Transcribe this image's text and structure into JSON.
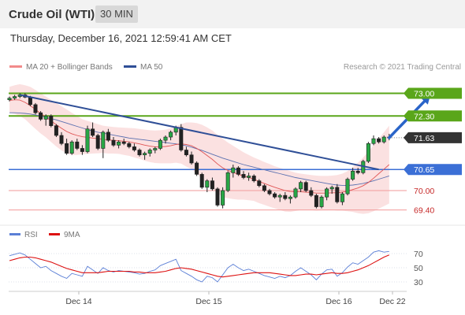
{
  "header": {
    "title": "Crude Oil (WTI)",
    "timeframe": "30 MIN"
  },
  "timestamp": "Thursday, December 16, 2021 12:59:41 AM CET",
  "legend": {
    "ma20_label": "MA 20 + Bollinger Bands",
    "ma50_label": "MA 50",
    "credit": "Research © 2021 Trading Central",
    "rsi_label": "RSI",
    "rsi_ma_label": "9MA"
  },
  "colors": {
    "green": "#5aa61a",
    "blue": "#3b6fd6",
    "red": "#e05555",
    "bands": "#f8c9c9",
    "ma20": "#e05555",
    "ma50": "#5b70b0",
    "trend": "#2f4f97",
    "current": "#333333",
    "rsi": "#5b7fd6",
    "rsi_ma": "#dd1111"
  },
  "chart_data": [
    {
      "type": "candlestick",
      "x_ticks": [
        "Dec 14",
        "Dec 15",
        "Dec 16",
        "Dec 22"
      ],
      "y_range": [
        69.1,
        73.4
      ],
      "levels": [
        {
          "value": 73.0,
          "label": "73.00",
          "kind": "resistance"
        },
        {
          "value": 72.3,
          "label": "72.30",
          "kind": "resistance"
        },
        {
          "value": 71.63,
          "label": "71.63",
          "kind": "current"
        },
        {
          "value": 70.65,
          "label": "70.65",
          "kind": "pivot"
        },
        {
          "value": 70.0,
          "label": "70.00",
          "kind": "support"
        },
        {
          "value": 69.4,
          "label": "69.40",
          "kind": "support"
        }
      ],
      "series": [
        {
          "name": "MA 20 + Bollinger Bands"
        },
        {
          "name": "MA 50"
        }
      ],
      "candles": [
        {
          "o": 72.8,
          "h": 72.9,
          "l": 72.75,
          "c": 72.85
        },
        {
          "o": 72.85,
          "h": 72.95,
          "l": 72.8,
          "c": 72.9
        },
        {
          "o": 72.9,
          "h": 73.0,
          "l": 72.85,
          "c": 72.95
        },
        {
          "o": 72.95,
          "h": 73.0,
          "l": 72.85,
          "c": 72.88
        },
        {
          "o": 72.88,
          "h": 72.92,
          "l": 72.6,
          "c": 72.65
        },
        {
          "o": 72.65,
          "h": 72.7,
          "l": 72.35,
          "c": 72.4
        },
        {
          "o": 72.4,
          "h": 72.45,
          "l": 72.15,
          "c": 72.2
        },
        {
          "o": 72.2,
          "h": 72.35,
          "l": 72.0,
          "c": 72.3
        },
        {
          "o": 72.3,
          "h": 72.35,
          "l": 71.95,
          "c": 72.0
        },
        {
          "o": 72.0,
          "h": 72.05,
          "l": 71.65,
          "c": 71.7
        },
        {
          "o": 71.7,
          "h": 71.8,
          "l": 71.4,
          "c": 71.45
        },
        {
          "o": 71.45,
          "h": 71.6,
          "l": 71.1,
          "c": 71.15
        },
        {
          "o": 71.15,
          "h": 71.55,
          "l": 71.1,
          "c": 71.5
        },
        {
          "o": 71.5,
          "h": 71.6,
          "l": 71.25,
          "c": 71.3
        },
        {
          "o": 71.3,
          "h": 71.4,
          "l": 71.1,
          "c": 71.2
        },
        {
          "o": 71.2,
          "h": 72.0,
          "l": 71.15,
          "c": 71.9
        },
        {
          "o": 71.9,
          "h": 72.1,
          "l": 71.65,
          "c": 71.7
        },
        {
          "o": 71.7,
          "h": 71.75,
          "l": 71.25,
          "c": 71.3
        },
        {
          "o": 71.3,
          "h": 71.85,
          "l": 71.0,
          "c": 71.8
        },
        {
          "o": 71.8,
          "h": 71.9,
          "l": 71.5,
          "c": 71.55
        },
        {
          "o": 71.55,
          "h": 71.65,
          "l": 71.35,
          "c": 71.4
        },
        {
          "o": 71.4,
          "h": 71.55,
          "l": 71.3,
          "c": 71.5
        },
        {
          "o": 71.5,
          "h": 71.6,
          "l": 71.4,
          "c": 71.45
        },
        {
          "o": 71.45,
          "h": 71.5,
          "l": 71.3,
          "c": 71.35
        },
        {
          "o": 71.35,
          "h": 71.45,
          "l": 71.2,
          "c": 71.25
        },
        {
          "o": 71.25,
          "h": 71.3,
          "l": 71.05,
          "c": 71.1
        },
        {
          "o": 71.1,
          "h": 71.2,
          "l": 70.95,
          "c": 71.15
        },
        {
          "o": 71.15,
          "h": 71.3,
          "l": 71.05,
          "c": 71.25
        },
        {
          "o": 71.25,
          "h": 71.35,
          "l": 71.15,
          "c": 71.3
        },
        {
          "o": 71.3,
          "h": 71.6,
          "l": 71.25,
          "c": 71.55
        },
        {
          "o": 71.55,
          "h": 71.7,
          "l": 71.45,
          "c": 71.65
        },
        {
          "o": 71.65,
          "h": 71.85,
          "l": 71.55,
          "c": 71.8
        },
        {
          "o": 71.8,
          "h": 72.0,
          "l": 71.7,
          "c": 71.95
        },
        {
          "o": 71.95,
          "h": 72.05,
          "l": 71.2,
          "c": 71.25
        },
        {
          "o": 71.25,
          "h": 71.35,
          "l": 71.05,
          "c": 71.1
        },
        {
          "o": 71.1,
          "h": 71.2,
          "l": 70.8,
          "c": 70.85
        },
        {
          "o": 70.85,
          "h": 70.9,
          "l": 70.45,
          "c": 70.5
        },
        {
          "o": 70.5,
          "h": 70.55,
          "l": 70.05,
          "c": 70.1
        },
        {
          "o": 70.1,
          "h": 70.35,
          "l": 69.95,
          "c": 70.3
        },
        {
          "o": 70.3,
          "h": 70.4,
          "l": 70.0,
          "c": 70.05
        },
        {
          "o": 70.05,
          "h": 70.1,
          "l": 69.5,
          "c": 69.55
        },
        {
          "o": 69.55,
          "h": 70.1,
          "l": 69.45,
          "c": 70.0
        },
        {
          "o": 70.0,
          "h": 70.6,
          "l": 69.95,
          "c": 70.55
        },
        {
          "o": 70.55,
          "h": 70.8,
          "l": 70.4,
          "c": 70.7
        },
        {
          "o": 70.7,
          "h": 70.75,
          "l": 70.45,
          "c": 70.5
        },
        {
          "o": 70.5,
          "h": 70.6,
          "l": 70.35,
          "c": 70.4
        },
        {
          "o": 70.4,
          "h": 70.55,
          "l": 70.3,
          "c": 70.45
        },
        {
          "o": 70.45,
          "h": 70.5,
          "l": 70.25,
          "c": 70.3
        },
        {
          "o": 70.3,
          "h": 70.35,
          "l": 70.1,
          "c": 70.15
        },
        {
          "o": 70.15,
          "h": 70.2,
          "l": 69.95,
          "c": 70.0
        },
        {
          "o": 70.0,
          "h": 70.05,
          "l": 69.85,
          "c": 69.9
        },
        {
          "o": 69.9,
          "h": 69.95,
          "l": 69.75,
          "c": 69.8
        },
        {
          "o": 69.8,
          "h": 69.9,
          "l": 69.65,
          "c": 69.85
        },
        {
          "o": 69.85,
          "h": 69.95,
          "l": 69.7,
          "c": 69.75
        },
        {
          "o": 69.75,
          "h": 69.85,
          "l": 69.6,
          "c": 69.8
        },
        {
          "o": 69.8,
          "h": 70.1,
          "l": 69.75,
          "c": 70.05
        },
        {
          "o": 70.05,
          "h": 70.3,
          "l": 69.95,
          "c": 70.25
        },
        {
          "o": 70.25,
          "h": 70.3,
          "l": 69.95,
          "c": 70.0
        },
        {
          "o": 70.0,
          "h": 70.1,
          "l": 69.8,
          "c": 69.85
        },
        {
          "o": 69.85,
          "h": 69.9,
          "l": 69.45,
          "c": 69.5
        },
        {
          "o": 69.5,
          "h": 69.85,
          "l": 69.45,
          "c": 69.8
        },
        {
          "o": 69.8,
          "h": 70.1,
          "l": 69.7,
          "c": 70.05
        },
        {
          "o": 70.05,
          "h": 70.15,
          "l": 69.9,
          "c": 70.1
        },
        {
          "o": 70.1,
          "h": 70.2,
          "l": 69.6,
          "c": 69.65
        },
        {
          "o": 69.65,
          "h": 69.95,
          "l": 69.55,
          "c": 69.9
        },
        {
          "o": 69.9,
          "h": 70.4,
          "l": 69.85,
          "c": 70.35
        },
        {
          "o": 70.35,
          "h": 70.7,
          "l": 70.3,
          "c": 70.6
        },
        {
          "o": 70.6,
          "h": 70.7,
          "l": 70.5,
          "c": 70.55
        },
        {
          "o": 70.55,
          "h": 70.95,
          "l": 70.5,
          "c": 70.9
        },
        {
          "o": 70.9,
          "h": 71.5,
          "l": 70.85,
          "c": 71.45
        },
        {
          "o": 71.45,
          "h": 71.7,
          "l": 71.4,
          "c": 71.6
        },
        {
          "o": 71.6,
          "h": 71.65,
          "l": 71.45,
          "c": 71.5
        },
        {
          "o": 71.5,
          "h": 71.7,
          "l": 71.45,
          "c": 71.65
        },
        {
          "o": 71.65,
          "h": 71.75,
          "l": 71.55,
          "c": 71.63
        }
      ],
      "ma20": [
        72.78,
        72.8,
        72.79,
        72.72,
        72.62,
        72.5,
        72.38,
        72.27,
        72.15,
        72.03,
        71.92,
        71.82,
        71.75,
        71.7,
        71.66,
        71.64,
        71.62,
        71.6,
        71.58,
        71.56,
        71.55,
        71.54,
        71.52,
        71.5,
        71.47,
        71.44,
        71.4,
        71.37,
        71.35,
        71.35,
        71.36,
        71.38,
        71.42,
        71.44,
        71.42,
        71.38,
        71.3,
        71.2,
        71.08,
        70.96,
        70.82,
        70.7,
        70.62,
        70.56,
        70.5,
        70.45,
        70.4,
        70.35,
        70.28,
        70.22,
        70.16,
        70.1,
        70.05,
        70.0,
        69.97,
        69.96,
        69.96,
        69.95,
        69.94,
        69.92,
        69.92,
        69.92,
        69.93,
        69.93,
        69.95,
        69.98,
        70.03,
        70.08,
        70.15,
        70.25,
        70.38,
        70.52,
        70.66,
        70.8
      ],
      "ma50": [
        72.4,
        72.4,
        72.39,
        72.38,
        72.36,
        72.33,
        72.3,
        72.26,
        72.22,
        72.18,
        72.13,
        72.08,
        72.03,
        71.98,
        71.93,
        71.88,
        71.84,
        71.8,
        71.77,
        71.74,
        71.71,
        71.68,
        71.65,
        71.62,
        71.6,
        71.58,
        71.56,
        71.54,
        71.52,
        71.5,
        71.48,
        71.46,
        71.44,
        71.41,
        71.38,
        71.34,
        71.29,
        71.24,
        71.18,
        71.12,
        71.06,
        71.0,
        70.95,
        70.9,
        70.85,
        70.8,
        70.76,
        70.72,
        70.68,
        70.64,
        70.6,
        70.56,
        70.52,
        70.48,
        70.44,
        70.4,
        70.37,
        70.34,
        70.31,
        70.28,
        70.25,
        70.22,
        70.19,
        70.17,
        70.16,
        70.16,
        70.17,
        70.19,
        70.22,
        70.26,
        70.3,
        70.35,
        70.4,
        70.45
      ],
      "bb_upper": [
        73.2,
        73.25,
        73.28,
        73.25,
        73.2,
        73.1,
        73.0,
        72.9,
        72.8,
        72.7,
        72.6,
        72.5,
        72.4,
        72.3,
        72.2,
        72.15,
        72.1,
        72.05,
        72.0,
        71.98,
        71.96,
        71.95,
        71.94,
        71.93,
        71.92,
        71.9,
        71.88,
        71.86,
        71.85,
        71.86,
        71.88,
        71.92,
        71.98,
        72.05,
        72.1,
        72.1,
        72.08,
        72.03,
        71.95,
        71.85,
        71.72,
        71.6,
        71.48,
        71.38,
        71.28,
        71.18,
        71.1,
        71.02,
        70.95,
        70.88,
        70.82,
        70.75,
        70.7,
        70.65,
        70.6,
        70.55,
        70.52,
        70.5,
        70.48,
        70.46,
        70.45,
        70.45,
        70.46,
        70.48,
        70.52,
        70.6,
        70.72,
        70.86,
        71.02,
        71.2,
        71.4,
        71.6,
        71.8,
        72.0
      ],
      "bb_lower": [
        72.4,
        72.36,
        72.3,
        72.2,
        72.05,
        71.9,
        71.76,
        71.64,
        71.5,
        71.36,
        71.24,
        71.14,
        71.1,
        71.1,
        71.12,
        71.13,
        71.14,
        71.15,
        71.16,
        71.14,
        71.14,
        71.13,
        71.1,
        71.07,
        71.02,
        70.98,
        70.92,
        70.88,
        70.85,
        70.84,
        70.84,
        70.84,
        70.86,
        70.83,
        70.74,
        70.66,
        70.52,
        70.37,
        70.21,
        70.07,
        69.92,
        69.8,
        69.76,
        69.74,
        69.72,
        69.72,
        69.7,
        69.68,
        69.61,
        69.56,
        69.5,
        69.45,
        69.4,
        69.35,
        69.34,
        69.37,
        69.4,
        69.4,
        69.4,
        69.38,
        69.39,
        69.39,
        69.4,
        69.38,
        69.38,
        69.36,
        69.34,
        69.3,
        69.28,
        69.3,
        69.36,
        69.44,
        69.52,
        69.6
      ],
      "trendline": [
        [
          2,
          72.95
        ],
        [
          71,
          70.65
        ]
      ],
      "projection": [
        [
          73,
          71.63
        ],
        [
          81,
          73.0
        ]
      ]
    },
    {
      "type": "line",
      "y_ticks": [
        70,
        50,
        30
      ],
      "y_range": [
        20,
        80
      ],
      "series": [
        {
          "name": "RSI",
          "values": [
            67,
            69,
            71,
            68,
            62,
            56,
            50,
            52,
            46,
            42,
            38,
            35,
            42,
            40,
            38,
            52,
            47,
            42,
            50,
            46,
            44,
            46,
            45,
            44,
            43,
            41,
            42,
            45,
            47,
            53,
            56,
            59,
            62,
            46,
            42,
            38,
            33,
            30,
            38,
            36,
            30,
            40,
            50,
            55,
            50,
            46,
            48,
            45,
            42,
            39,
            37,
            35,
            38,
            36,
            39,
            45,
            50,
            45,
            40,
            33,
            41,
            47,
            48,
            38,
            43,
            51,
            57,
            55,
            60,
            65,
            72,
            74,
            72,
            73
          ]
        },
        {
          "name": "9MA",
          "values": [
            60,
            62,
            64,
            65,
            65,
            64,
            62,
            60,
            58,
            55,
            52,
            49,
            47,
            45,
            43,
            43,
            43,
            43,
            44,
            45,
            45,
            45,
            45,
            45,
            44,
            44,
            43,
            43,
            43,
            44,
            45,
            47,
            49,
            50,
            49,
            48,
            46,
            44,
            42,
            40,
            38,
            37,
            38,
            39,
            40,
            41,
            42,
            43,
            43,
            43,
            43,
            42,
            41,
            40,
            39,
            39,
            40,
            41,
            41,
            40,
            41,
            42,
            43,
            42,
            42,
            43,
            45,
            47,
            50,
            53,
            57,
            61,
            65,
            68
          ]
        }
      ]
    }
  ]
}
